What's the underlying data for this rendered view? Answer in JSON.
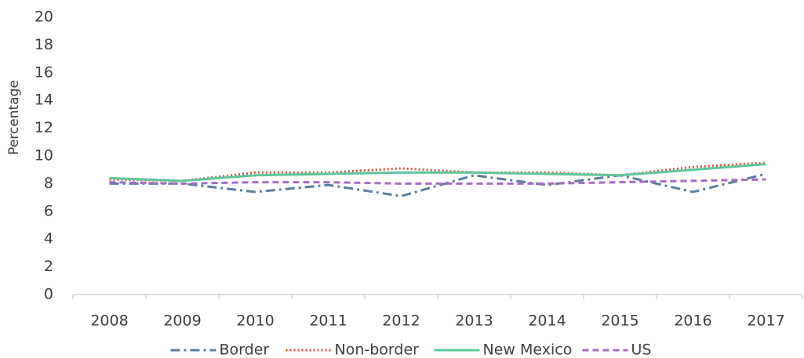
{
  "chart_data": {
    "type": "line",
    "y_label": "Percentage",
    "categories": [
      "2008",
      "2009",
      "2010",
      "2011",
      "2012",
      "2013",
      "2014",
      "2015",
      "2016",
      "2017"
    ],
    "series": [
      {
        "name": "Border",
        "color": "#5b7d9c",
        "dash": "dashdot",
        "values": [
          8.0,
          8.0,
          7.4,
          7.9,
          7.1,
          8.6,
          7.9,
          8.6,
          7.4,
          8.7
        ]
      },
      {
        "name": "Non-border",
        "color": "#e0533f",
        "dash": "dotted",
        "values": [
          8.3,
          8.2,
          8.8,
          8.8,
          9.1,
          8.8,
          8.8,
          8.6,
          9.2,
          9.5
        ]
      },
      {
        "name": "New Mexico",
        "color": "#5cc69a",
        "dash": "solid",
        "values": [
          8.4,
          8.2,
          8.6,
          8.7,
          8.8,
          8.8,
          8.7,
          8.6,
          9.0,
          9.4
        ]
      },
      {
        "name": "US",
        "color": "#a56cc1",
        "dash": "dashed",
        "values": [
          8.1,
          8.0,
          8.1,
          8.1,
          8.0,
          8.0,
          8.0,
          8.1,
          8.2,
          8.3
        ]
      }
    ],
    "ylim": [
      0,
      20
    ],
    "yticks": [
      0,
      2,
      4,
      6,
      8,
      10,
      12,
      14,
      16,
      18,
      20
    ],
    "grid": false,
    "legend": "bottom"
  }
}
